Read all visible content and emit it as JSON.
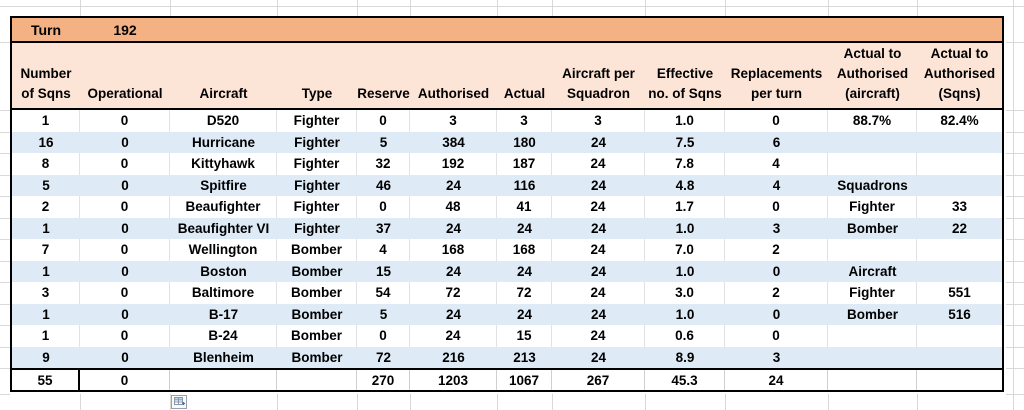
{
  "turn": {
    "label": "Turn",
    "value": "192"
  },
  "columns": [
    "Number\nof Sqns",
    "Operational",
    "Aircraft",
    "Type",
    "Reserve",
    "Authorised",
    "Actual",
    "Aircraft per\nSquadron",
    "Effective\nno. of Sqns",
    "Replacements\nper turn",
    "Actual to\nAuthorised\n(aircraft)",
    "Actual to\nAuthorised\n(Sqns)"
  ],
  "rows": [
    [
      "1",
      "0",
      "D520",
      "Fighter",
      "0",
      "3",
      "3",
      "3",
      "1.0",
      "0",
      "88.7%",
      "82.4%"
    ],
    [
      "16",
      "0",
      "Hurricane",
      "Fighter",
      "5",
      "384",
      "180",
      "24",
      "7.5",
      "6",
      "",
      ""
    ],
    [
      "8",
      "0",
      "Kittyhawk",
      "Fighter",
      "32",
      "192",
      "187",
      "24",
      "7.8",
      "4",
      "",
      ""
    ],
    [
      "5",
      "0",
      "Spitfire",
      "Fighter",
      "46",
      "24",
      "116",
      "24",
      "4.8",
      "4",
      "Squadrons",
      ""
    ],
    [
      "2",
      "0",
      "Beaufighter",
      "Fighter",
      "0",
      "48",
      "41",
      "24",
      "1.7",
      "0",
      "Fighter",
      "33"
    ],
    [
      "1",
      "0",
      "Beaufighter VI",
      "Fighter",
      "37",
      "24",
      "24",
      "24",
      "1.0",
      "3",
      "Bomber",
      "22"
    ],
    [
      "7",
      "0",
      "Wellington",
      "Bomber",
      "4",
      "168",
      "168",
      "24",
      "7.0",
      "2",
      "",
      ""
    ],
    [
      "1",
      "0",
      "Boston",
      "Bomber",
      "15",
      "24",
      "24",
      "24",
      "1.0",
      "0",
      "Aircraft",
      ""
    ],
    [
      "3",
      "0",
      "Baltimore",
      "Bomber",
      "54",
      "72",
      "72",
      "24",
      "3.0",
      "2",
      "Fighter",
      "551"
    ],
    [
      "1",
      "0",
      "B-17",
      "Bomber",
      "5",
      "24",
      "24",
      "24",
      "1.0",
      "0",
      "Bomber",
      "516"
    ],
    [
      "1",
      "0",
      "B-24",
      "Bomber",
      "0",
      "24",
      "15",
      "24",
      "0.6",
      "0",
      "",
      ""
    ],
    [
      "9",
      "0",
      "Blenheim",
      "Bomber",
      "72",
      "216",
      "213",
      "24",
      "8.9",
      "3",
      "",
      ""
    ]
  ],
  "totals": [
    "55",
    "0",
    "",
    "",
    "270",
    "1203",
    "1067",
    "267",
    "45.3",
    "24",
    "",
    ""
  ],
  "colors": {
    "turn_row_bg": "#F4B183",
    "header_bg": "#FCE4D6",
    "banded_row_bg": "#DEEBF7",
    "gridline": "#D9D9D9",
    "table_border": "#000000"
  },
  "icons": {
    "insert_options": "insert-options-icon"
  }
}
